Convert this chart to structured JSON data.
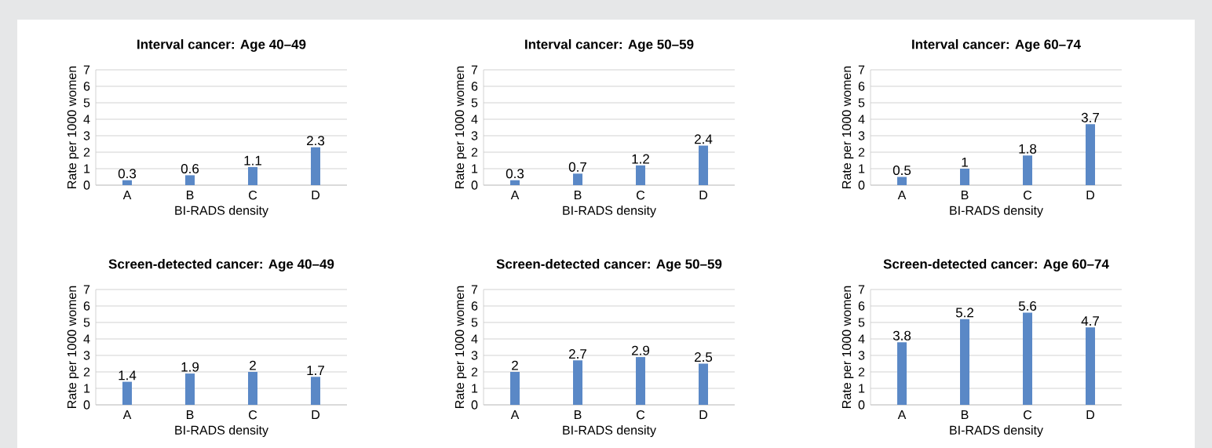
{
  "chart_data": [
    {
      "type": "bar",
      "title": "Interval cancer: Age 40–49",
      "xlabel": "BI-RADS density",
      "ylabel": "Rate per 1000 women",
      "categories": [
        "A",
        "B",
        "C",
        "D"
      ],
      "values": [
        0.3,
        0.6,
        1.1,
        2.3
      ],
      "color": "#5a88c6",
      "ylim": [
        0,
        7
      ],
      "yticks": [
        0,
        1,
        2,
        3,
        4,
        5,
        6,
        7
      ],
      "grid": "y",
      "data_labels": true
    },
    {
      "type": "bar",
      "title": "Interval cancer: Age 50–59",
      "xlabel": "BI-RADS density",
      "ylabel": "Rate per 1000 women",
      "categories": [
        "A",
        "B",
        "C",
        "D"
      ],
      "values": [
        0.3,
        0.7,
        1.2,
        2.4
      ],
      "color": "#5a88c6",
      "ylim": [
        0,
        7
      ],
      "yticks": [
        0,
        1,
        2,
        3,
        4,
        5,
        6,
        7
      ],
      "grid": "y",
      "data_labels": true
    },
    {
      "type": "bar",
      "title": "Interval cancer: Age 60–74",
      "xlabel": "BI-RADS density",
      "ylabel": "Rate per 1000 women",
      "categories": [
        "A",
        "B",
        "C",
        "D"
      ],
      "values": [
        0.5,
        1,
        1.8,
        3.7
      ],
      "color": "#5a88c6",
      "ylim": [
        0,
        7
      ],
      "yticks": [
        0,
        1,
        2,
        3,
        4,
        5,
        6,
        7
      ],
      "grid": "y",
      "data_labels": true
    },
    {
      "type": "bar",
      "title": "Screen-detected cancer: Age 40–49",
      "xlabel": "BI-RADS density",
      "ylabel": "Rate per 1000 women",
      "categories": [
        "A",
        "B",
        "C",
        "D"
      ],
      "values": [
        1.4,
        1.9,
        2,
        1.7
      ],
      "color": "#5a88c6",
      "ylim": [
        0,
        7
      ],
      "yticks": [
        0,
        1,
        2,
        3,
        4,
        5,
        6,
        7
      ],
      "grid": "y",
      "data_labels": true
    },
    {
      "type": "bar",
      "title": "Screen-detected cancer: Age 50–59",
      "xlabel": "BI-RADS density",
      "ylabel": "Rate per 1000 women",
      "categories": [
        "A",
        "B",
        "C",
        "D"
      ],
      "values": [
        2,
        2.7,
        2.9,
        2.5
      ],
      "color": "#5a88c6",
      "ylim": [
        0,
        7
      ],
      "yticks": [
        0,
        1,
        2,
        3,
        4,
        5,
        6,
        7
      ],
      "grid": "y",
      "data_labels": true
    },
    {
      "type": "bar",
      "title": "Screen-detected cancer: Age 60–74",
      "xlabel": "BI-RADS density",
      "ylabel": "Rate per 1000 women",
      "categories": [
        "A",
        "B",
        "C",
        "D"
      ],
      "values": [
        3.8,
        5.2,
        5.6,
        4.7
      ],
      "color": "#5a88c6",
      "ylim": [
        0,
        7
      ],
      "yticks": [
        0,
        1,
        2,
        3,
        4,
        5,
        6,
        7
      ],
      "grid": "y",
      "data_labels": true
    }
  ]
}
